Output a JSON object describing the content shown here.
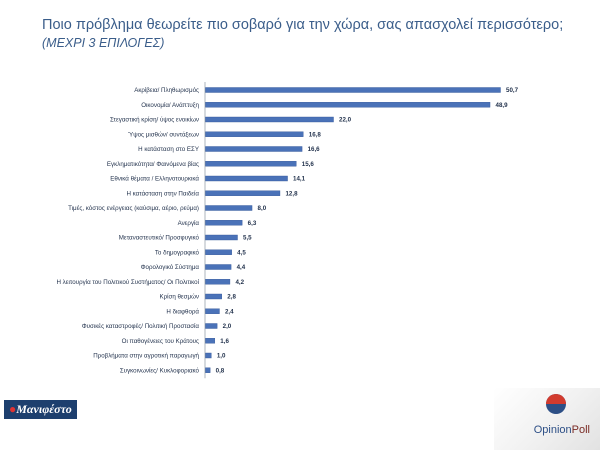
{
  "title": "Ποιο πρόβλημα θεωρείτε πιο σοβαρό για την χώρα, σας απασχολεί περισσότερο;",
  "subtitle": "(ΜΕΧΡΙ 3 ΕΠΙΛΟΓΕΣ)",
  "logos": {
    "left_text": "Μανιφέστο",
    "right_text_1": "Opinion",
    "right_text_2": "Poll"
  },
  "colors": {
    "bar": "#4a72b8",
    "bar_edge": "#35589a",
    "title": "#3a5d8a"
  },
  "chart_data": {
    "type": "bar",
    "orientation": "horizontal",
    "title": "Ποιο πρόβλημα θεωρείτε πιο σοβαρό για την χώρα, σας απασχολεί περισσότερο;",
    "subtitle": "(ΜΕΧΡΙ 3 ΕΠΙΛΟΓΕΣ)",
    "xlabel": "",
    "ylabel": "",
    "xlim": [
      0,
      55
    ],
    "grid": false,
    "legend": "none",
    "categories": [
      "Ακρίβεια/ Πληθωρισμός",
      "Οικονομία/ Ανάπτυξη",
      "Στεγαστική κρίση/ ύψος ενοικίων",
      "Ύψος μισθών/ συντάξεων",
      "Η κατάσταση στο ΕΣΥ",
      "Εγκληματικότητα/ Φαινόμενα βίας",
      "Εθνικά θέματα / Ελληνοτουρκικά",
      "Η κατάσταση στην Παιδεία",
      "Τιμές, κόστος ενέργειας (καύσιμα, αέριο, ρεύμα)",
      "Ανεργία",
      "Μεταναστευτικό/ Προσφυγικό",
      "Το δημογραφικό",
      "Φορολογικό Σύστημα",
      "Η λειτουργία του Πολιτικού Συστήματος/ Οι Πολιτικοί",
      "Κρίση θεσμών",
      "Η διαφθορά",
      "Φυσικές καταστροφές/ Πολιτική Προστασία",
      "Οι παθογένειες του Κράτους",
      "Προβλήματα στην αγροτική παραγωγή",
      "Συγκοινωνίες/ Κυκλοφοριακό"
    ],
    "values": [
      50.7,
      48.9,
      22.0,
      16.8,
      16.6,
      15.6,
      14.1,
      12.8,
      8.0,
      6.3,
      5.5,
      4.5,
      4.4,
      4.2,
      2.8,
      2.4,
      2.0,
      1.6,
      1.0,
      0.8
    ],
    "value_labels": [
      "50,7",
      "48,9",
      "22,0",
      "16,8",
      "16,6",
      "15,6",
      "14,1",
      "12,8",
      "8,0",
      "6,3",
      "5,5",
      "4,5",
      "4,4",
      "4,2",
      "2,8",
      "2,4",
      "2,0",
      "1,6",
      "1,0",
      "0,8"
    ]
  }
}
